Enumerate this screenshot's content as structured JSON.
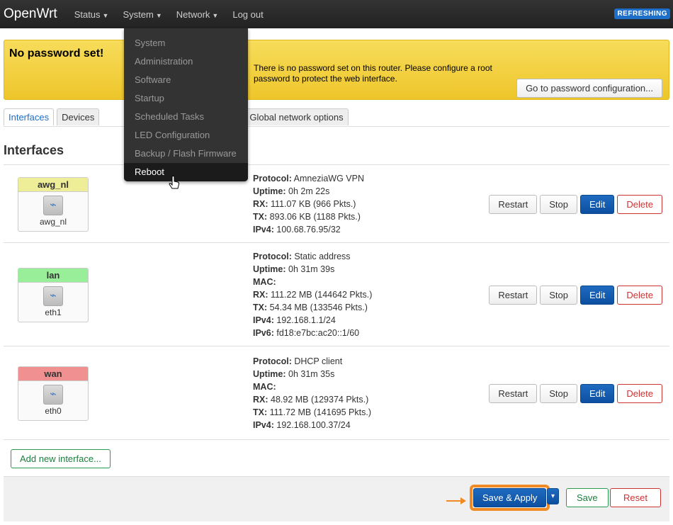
{
  "nav": {
    "brand": "OpenWrt",
    "menus": [
      "Status",
      "System",
      "Network",
      "Log out"
    ],
    "status_badge": "REFRESHING"
  },
  "dropdown": {
    "items": [
      "System",
      "Administration",
      "Software",
      "Startup",
      "Scheduled Tasks",
      "LED Configuration",
      "Backup / Flash Firmware",
      "Reboot"
    ],
    "active": "Reboot"
  },
  "alert": {
    "title": "No password set!",
    "text": "There is no password set on this router. Please configure a root password to protect the web interface.",
    "button": "Go to password configuration..."
  },
  "tabs": [
    "Interfaces",
    "Devices",
    "Global network options"
  ],
  "heading": "Interfaces",
  "interfaces": [
    {
      "name": "awg_nl",
      "color": "#eeee99",
      "device": "awg_nl",
      "lines": [
        [
          "Protocol:",
          "AmneziaWG VPN"
        ],
        [
          "Uptime:",
          "0h 2m 22s"
        ],
        [
          "RX:",
          "111.07 KB (966 Pkts.)"
        ],
        [
          "TX:",
          "893.06 KB (1188 Pkts.)"
        ],
        [
          "IPv4:",
          "100.68.76.95/32"
        ]
      ]
    },
    {
      "name": "lan",
      "color": "#99ee99",
      "device": "eth1",
      "lines": [
        [
          "Protocol:",
          "Static address"
        ],
        [
          "Uptime:",
          "0h 31m 39s"
        ],
        [
          "MAC:",
          ""
        ],
        [
          "RX:",
          "111.22 MB (144642 Pkts.)"
        ],
        [
          "TX:",
          "54.34 MB (133546 Pkts.)"
        ],
        [
          "IPv4:",
          "192.168.1.1/24"
        ],
        [
          "IPv6:",
          "fd18:e7bc:ac20::1/60"
        ]
      ]
    },
    {
      "name": "wan",
      "color": "#f09090",
      "device": "eth0",
      "lines": [
        [
          "Protocol:",
          "DHCP client"
        ],
        [
          "Uptime:",
          "0h 31m 35s"
        ],
        [
          "MAC:",
          ""
        ],
        [
          "RX:",
          "48.92 MB (129374 Pkts.)"
        ],
        [
          "TX:",
          "111.72 MB (141695 Pkts.)"
        ],
        [
          "IPv4:",
          "192.168.100.37/24"
        ]
      ]
    }
  ],
  "row_actions": [
    "Restart",
    "Stop",
    "Edit",
    "Delete"
  ],
  "add_button": "Add new interface...",
  "footer": {
    "save_apply": "Save & Apply",
    "dropdown": "▾",
    "save": "Save",
    "reset": "Reset"
  }
}
